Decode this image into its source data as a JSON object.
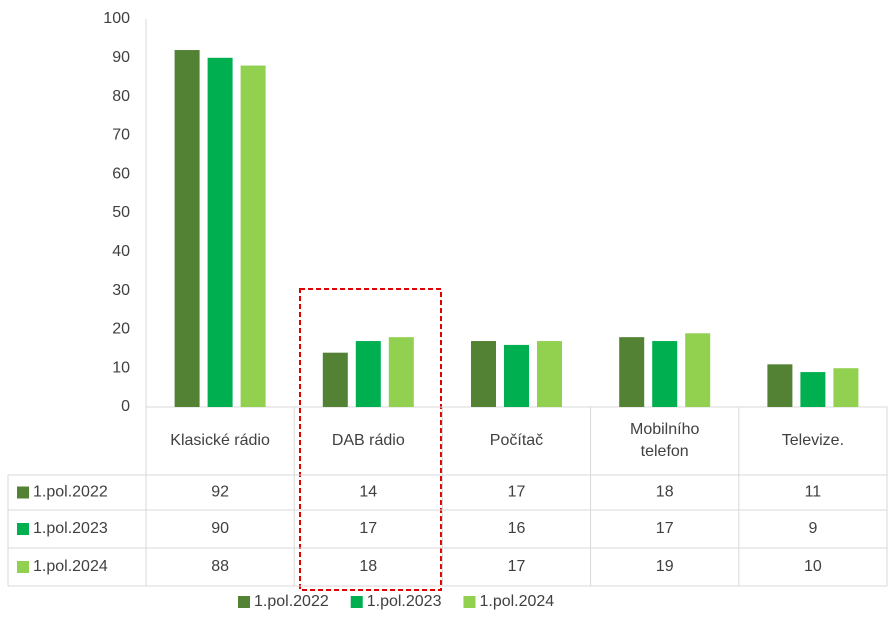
{
  "chart_data": {
    "type": "bar",
    "categories": [
      "Klasické rádio",
      "DAB rádio",
      "Počítač",
      "Mobilního\ntelefon",
      "Televize."
    ],
    "series": [
      {
        "name": "1.pol.2022",
        "color": "#548235",
        "values": [
          92,
          14,
          17,
          18,
          11
        ]
      },
      {
        "name": "1.pol.2023",
        "color": "#00b050",
        "values": [
          90,
          17,
          16,
          17,
          9
        ]
      },
      {
        "name": "1.pol.2024",
        "color": "#92d050",
        "values": [
          88,
          18,
          17,
          19,
          10
        ]
      }
    ],
    "ylim": [
      0,
      100
    ],
    "yticks": [
      0,
      10,
      20,
      30,
      40,
      50,
      60,
      70,
      80,
      90,
      100
    ],
    "grid": false,
    "legend": "bottom",
    "data_table": true
  }
}
